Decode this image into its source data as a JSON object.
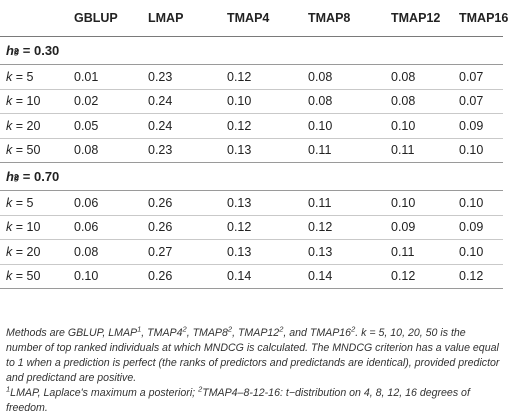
{
  "columns": [
    "",
    "GBLUP",
    "LMAP",
    "TMAP4",
    "TMAP8",
    "TMAP12",
    "TMAP16"
  ],
  "sections": [
    {
      "label_main": "h",
      "label_sup": "2",
      "label_sub": "g",
      "label_value": "= 0.30",
      "rows": [
        {
          "k_symbol": "k",
          "k_value": "= 5",
          "values": [
            "0.01",
            "0.23",
            "0.12",
            "0.08",
            "0.08",
            "0.07"
          ]
        },
        {
          "k_symbol": "k",
          "k_value": "= 10",
          "values": [
            "0.02",
            "0.24",
            "0.10",
            "0.08",
            "0.08",
            "0.07"
          ]
        },
        {
          "k_symbol": "k",
          "k_value": "= 20",
          "values": [
            "0.05",
            "0.24",
            "0.12",
            "0.10",
            "0.10",
            "0.09"
          ]
        },
        {
          "k_symbol": "k",
          "k_value": "= 50",
          "values": [
            "0.08",
            "0.23",
            "0.13",
            "0.11",
            "0.11",
            "0.10"
          ]
        }
      ]
    },
    {
      "label_main": "h",
      "label_sup": "2",
      "label_sub": "g",
      "label_value": "= 0.70",
      "rows": [
        {
          "k_symbol": "k",
          "k_value": "= 5",
          "values": [
            "0.06",
            "0.26",
            "0.13",
            "0.11",
            "0.10",
            "0.10"
          ]
        },
        {
          "k_symbol": "k",
          "k_value": "= 10",
          "values": [
            "0.06",
            "0.26",
            "0.12",
            "0.12",
            "0.09",
            "0.09"
          ]
        },
        {
          "k_symbol": "k",
          "k_value": "= 20",
          "values": [
            "0.08",
            "0.27",
            "0.13",
            "0.13",
            "0.11",
            "0.10"
          ]
        },
        {
          "k_symbol": "k",
          "k_value": "= 50",
          "values": [
            "0.10",
            "0.26",
            "0.14",
            "0.14",
            "0.12",
            "0.12"
          ]
        }
      ]
    }
  ],
  "notes": {
    "p1_a": "Methods are GBLUP, LMAP",
    "p1_sup1": "1",
    "p1_b": ", TMAP4",
    "p1_sup2": "2",
    "p1_c": ", TMAP8",
    "p1_sup3": "2",
    "p1_d": ", TMAP12",
    "p1_sup4": "2",
    "p1_e": ", and TMAP16",
    "p1_sup5": "2",
    "p1_f": ". k = 5, 10, 20, 50 is the number of top ranked individuals at which MNDCG is calculated. The MNDCG criterion has a value equal to 1 when a prediction is perfect (the ranks of predictors and predictands are identical), provided predictor and predictand are positive.",
    "p2_sup1": "1",
    "p2_a": "LMAP, Laplace's maximum a posteriori; ",
    "p2_sup2": "2",
    "p2_b": "TMAP4–8-12-16: t−distribution on 4, 8, 12, 16 degrees of freedom."
  }
}
